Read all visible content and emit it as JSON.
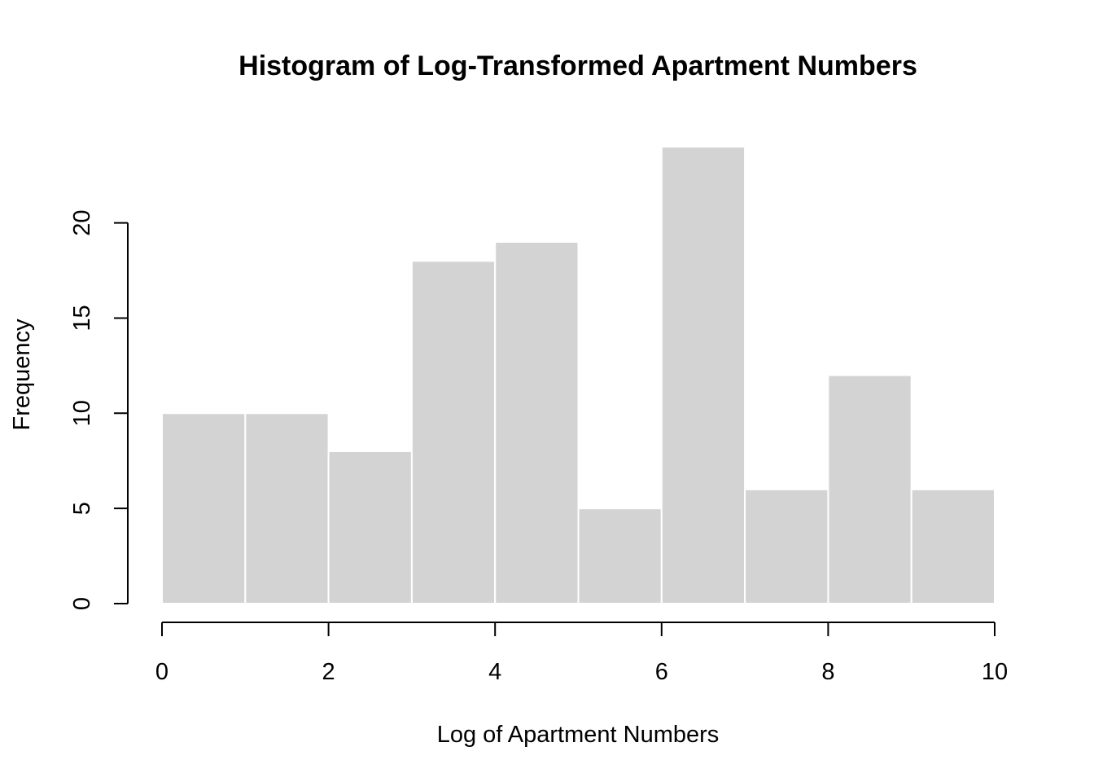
{
  "chart_data": {
    "type": "bar",
    "title": "Histogram of Log-Transformed Apartment Numbers",
    "xlabel": "Log of Apartment Numbers",
    "ylabel": "Frequency",
    "bins": [
      {
        "from": 0,
        "to": 1,
        "count": 10
      },
      {
        "from": 1,
        "to": 2,
        "count": 10
      },
      {
        "from": 2,
        "to": 3,
        "count": 8
      },
      {
        "from": 3,
        "to": 4,
        "count": 18
      },
      {
        "from": 4,
        "to": 5,
        "count": 19
      },
      {
        "from": 5,
        "to": 6,
        "count": 5
      },
      {
        "from": 6,
        "to": 7,
        "count": 24
      },
      {
        "from": 7,
        "to": 8,
        "count": 6
      },
      {
        "from": 8,
        "to": 9,
        "count": 12
      },
      {
        "from": 9,
        "to": 10,
        "count": 6
      }
    ],
    "xlim": [
      0,
      10
    ],
    "ylim": [
      0,
      24
    ],
    "x_ticks": [
      "0",
      "2",
      "4",
      "6",
      "8",
      "10"
    ],
    "y_ticks": [
      "0",
      "5",
      "10",
      "15",
      "20"
    ],
    "bar_color": "#d3d3d3",
    "bar_border_color": "#ffffff",
    "grid": false
  }
}
